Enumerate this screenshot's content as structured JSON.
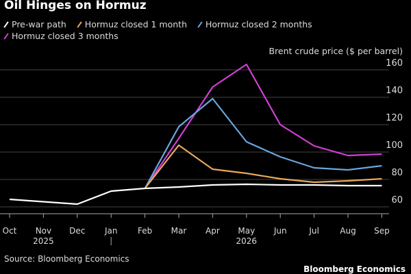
{
  "chart_data": {
    "type": "line",
    "title": "Oil Hinges on Hormuz",
    "ylabel": "Brent crude price ($ per barrel)",
    "categories": [
      "Oct",
      "Nov",
      "Dec",
      "Jan",
      "Feb",
      "Mar",
      "Apr",
      "May",
      "Jun",
      "Jul",
      "Aug",
      "Sep"
    ],
    "year_labels": [
      {
        "label": "2025",
        "under": "Nov"
      },
      {
        "label": "2026",
        "under": "May"
      }
    ],
    "ylim": [
      55,
      165
    ],
    "yticks": [
      60,
      80,
      100,
      120,
      140,
      160
    ],
    "grid": true,
    "legend_position": "top-left",
    "series": [
      {
        "name": "Pre-war path",
        "color": "#ffffff",
        "values": [
          65.5,
          null,
          62,
          71.5,
          73.5,
          74.5,
          76,
          76.5,
          76,
          76,
          75.5,
          75.5
        ]
      },
      {
        "name": "Hormuz closed 1 month",
        "color": "#e8a95a",
        "values": [
          null,
          null,
          null,
          null,
          73.5,
          105,
          87.5,
          84.5,
          80.5,
          78,
          79,
          80.5
        ]
      },
      {
        "name": "Hormuz closed 2 months",
        "color": "#6aa6e0",
        "values": [
          null,
          null,
          null,
          null,
          73.5,
          118.5,
          139,
          107.5,
          96.5,
          88.5,
          87,
          90
        ]
      },
      {
        "name": "Hormuz closed 3 months",
        "color": "#d23fd6",
        "values": [
          null,
          null,
          null,
          null,
          73.5,
          110,
          147.5,
          164,
          120,
          104.5,
          97.5,
          98.5
        ]
      }
    ]
  },
  "source": "Source: Bloomberg Economics",
  "brand": "Bloomberg Economics"
}
